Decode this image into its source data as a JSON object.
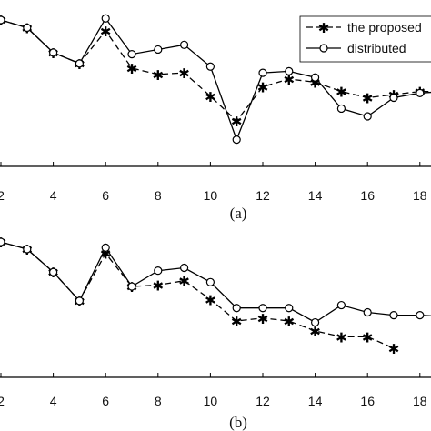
{
  "chart_data": [
    {
      "type": "line",
      "caption": "(a)",
      "x": [
        2,
        3,
        4,
        5,
        6,
        7,
        8,
        9,
        10,
        11,
        12,
        13,
        14,
        15,
        16,
        17,
        18,
        19
      ],
      "xticks": [
        2,
        4,
        6,
        8,
        10,
        12,
        14,
        16,
        18
      ],
      "xlim": [
        2,
        19
      ],
      "ylim": [
        0,
        1
      ],
      "legend": {
        "placement": "top-right",
        "entries": [
          "the proposed",
          "distributed"
        ]
      },
      "series": [
        {
          "name": "the proposed",
          "style": "dashed",
          "marker": "asterisk",
          "values": [
            0.93,
            0.88,
            0.72,
            0.65,
            0.86,
            0.62,
            0.58,
            0.59,
            0.44,
            0.28,
            0.5,
            0.55,
            0.53,
            0.47,
            0.43,
            0.45,
            0.47,
            0.47
          ]
        },
        {
          "name": "distributed",
          "style": "solid",
          "marker": "circle",
          "values": [
            0.93,
            0.88,
            0.72,
            0.65,
            0.94,
            0.71,
            0.74,
            0.77,
            0.63,
            0.16,
            0.59,
            0.6,
            0.56,
            0.36,
            0.31,
            0.43,
            0.46,
            0.47
          ]
        }
      ]
    },
    {
      "type": "line",
      "caption": "(b)",
      "x": [
        2,
        3,
        4,
        5,
        6,
        7,
        8,
        9,
        10,
        11,
        12,
        13,
        14,
        15,
        16,
        17,
        18,
        19
      ],
      "xticks": [
        2,
        4,
        6,
        8,
        10,
        12,
        14,
        16,
        18
      ],
      "xlim": [
        2,
        19
      ],
      "ylim": [
        0,
        1
      ],
      "series": [
        {
          "name": "the proposed",
          "style": "dashed",
          "marker": "asterisk",
          "values": [
            0.93,
            0.88,
            0.72,
            0.52,
            0.85,
            0.62,
            0.63,
            0.66,
            0.53,
            0.38,
            0.4,
            0.38,
            0.31,
            0.27,
            0.27,
            0.19,
            null,
            null
          ]
        },
        {
          "name": "distributed",
          "style": "solid",
          "marker": "circle",
          "values": [
            0.93,
            0.88,
            0.72,
            0.52,
            0.89,
            0.62,
            0.73,
            0.75,
            0.65,
            0.47,
            0.47,
            0.47,
            0.37,
            0.49,
            0.44,
            0.42,
            0.42,
            0.41
          ]
        }
      ]
    }
  ]
}
